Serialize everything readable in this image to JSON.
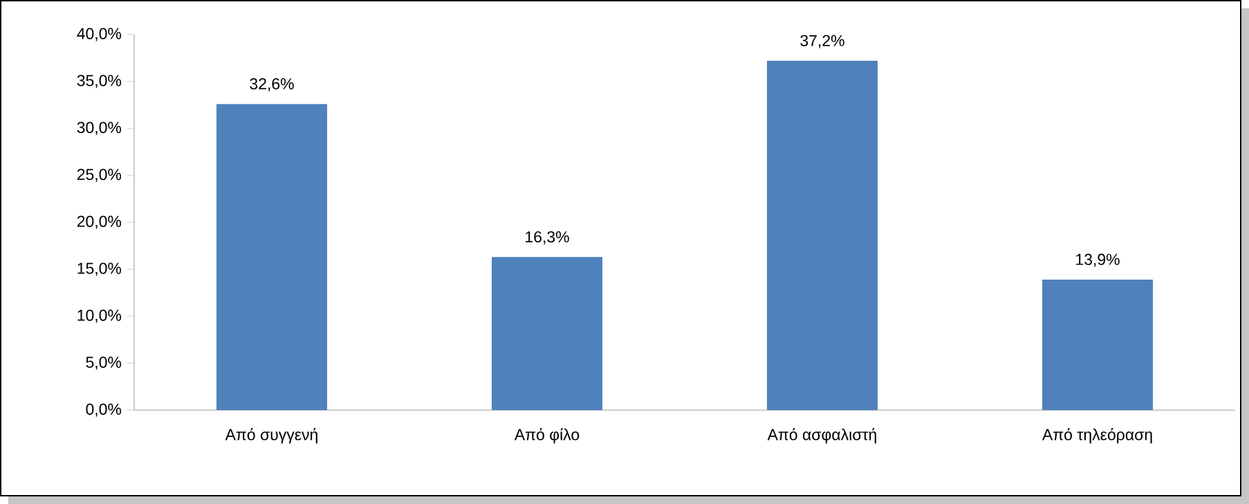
{
  "chart_data": {
    "type": "bar",
    "categories": [
      "Από συγγενή",
      "Από φίλο",
      "Από ασφαλιστή",
      "Από τηλεόραση"
    ],
    "values": [
      32.6,
      16.3,
      37.2,
      13.9
    ],
    "value_labels": [
      "32,6%",
      "16,3%",
      "37,2%",
      "13,9%"
    ],
    "color": "#4f81bd",
    "ylim": [
      0,
      40
    ],
    "yticks": [
      {
        "value": 0,
        "label": "0,0%"
      },
      {
        "value": 5,
        "label": "5,0%"
      },
      {
        "value": 10,
        "label": "10,0%"
      },
      {
        "value": 15,
        "label": "15,0%"
      },
      {
        "value": 20,
        "label": "20,0%"
      },
      {
        "value": 25,
        "label": "25,0%"
      },
      {
        "value": 30,
        "label": "30,0%"
      },
      {
        "value": 35,
        "label": "35,0%"
      },
      {
        "value": 40,
        "label": "40,0%"
      }
    ],
    "grid": false
  }
}
